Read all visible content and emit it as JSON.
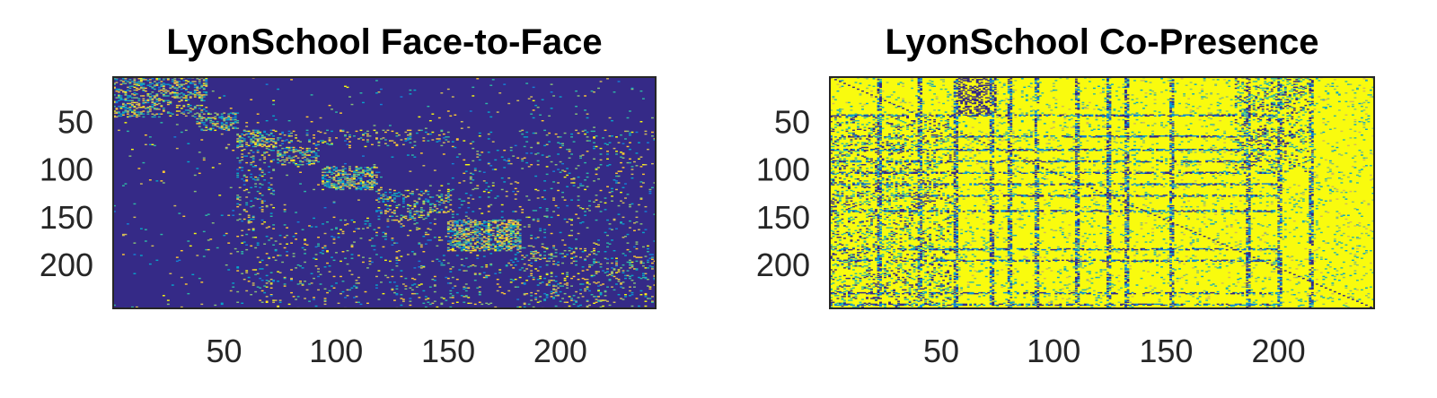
{
  "chart_data": [
    {
      "type": "heatmap",
      "title": "LyonSchool Face-to-Face",
      "xlabel": "",
      "ylabel": "",
      "matrix_size": 242,
      "xlim": [
        0.5,
        242.5
      ],
      "ylim": [
        0.5,
        242.5
      ],
      "x_ticks": [
        50,
        100,
        150,
        200
      ],
      "y_ticks": [
        50,
        100,
        150,
        200
      ],
      "x_tick_labels": [
        "50",
        "100",
        "150",
        "200"
      ],
      "y_tick_labels": [
        "50",
        "100",
        "150",
        "200"
      ],
      "y_direction": "reversed",
      "colormap": "parula",
      "colormap_colors": [
        "#352a87",
        "#0f5cdd",
        "#1481d6",
        "#06a4ca",
        "#2eb7a4",
        "#87bf77",
        "#d1bb59",
        "#fec832",
        "#f9fb0e"
      ],
      "background_value": 0,
      "density": "sparse",
      "diagonal_line": false,
      "dense_blocks": [
        {
          "rows": [
            1,
            22
          ],
          "cols": [
            1,
            42
          ],
          "density": 0.35
        },
        {
          "rows": [
            22,
            42
          ],
          "cols": [
            1,
            40
          ],
          "density": 0.2
        },
        {
          "rows": [
            38,
            56
          ],
          "cols": [
            42,
            56
          ],
          "density": 0.4
        },
        {
          "rows": [
            56,
            73
          ],
          "cols": [
            56,
            73
          ],
          "density": 0.45
        },
        {
          "rows": [
            76,
            90
          ],
          "cols": [
            74,
            92
          ],
          "density": 0.35
        },
        {
          "rows": [
            96,
            118
          ],
          "cols": [
            94,
            118
          ],
          "density": 0.45
        },
        {
          "rows": [
            118,
            142
          ],
          "cols": [
            118,
            150
          ],
          "density": 0.22
        },
        {
          "rows": [
            150,
            182
          ],
          "cols": [
            150,
            182
          ],
          "density": 0.5
        },
        {
          "rows": [
            182,
            220
          ],
          "cols": [
            180,
            242
          ],
          "density": 0.12
        },
        {
          "rows": [
            56,
            150
          ],
          "cols": [
            56,
            72
          ],
          "density": 0.12
        },
        {
          "rows": [
            150,
            242
          ],
          "cols": [
            56,
            242
          ],
          "density": 0.05
        }
      ]
    },
    {
      "type": "heatmap",
      "title": "LyonSchool Co-Presence",
      "xlabel": "",
      "ylabel": "",
      "matrix_size": 242,
      "xlim": [
        0.5,
        242.5
      ],
      "ylim": [
        0.5,
        242.5
      ],
      "x_ticks": [
        50,
        100,
        150,
        200
      ],
      "y_ticks": [
        50,
        100,
        150,
        200
      ],
      "x_tick_labels": [
        "50",
        "100",
        "150",
        "200"
      ],
      "y_tick_labels": [
        "50",
        "100",
        "150",
        "200"
      ],
      "y_direction": "reversed",
      "colormap": "parula",
      "colormap_colors": [
        "#352a87",
        "#0f5cdd",
        "#1481d6",
        "#06a4ca",
        "#2eb7a4",
        "#87bf77",
        "#d1bb59",
        "#fec832",
        "#f9fb0e"
      ],
      "background_value": 1,
      "density": "dense",
      "diagonal_line": true,
      "dark_rows": [
        40,
        62,
        76,
        88,
        100,
        112,
        124,
        140,
        180,
        192,
        226,
        238
      ],
      "dark_cols": [
        22,
        40,
        56,
        72,
        80,
        92,
        110,
        124,
        132,
        152,
        186,
        200,
        214
      ]
    }
  ]
}
